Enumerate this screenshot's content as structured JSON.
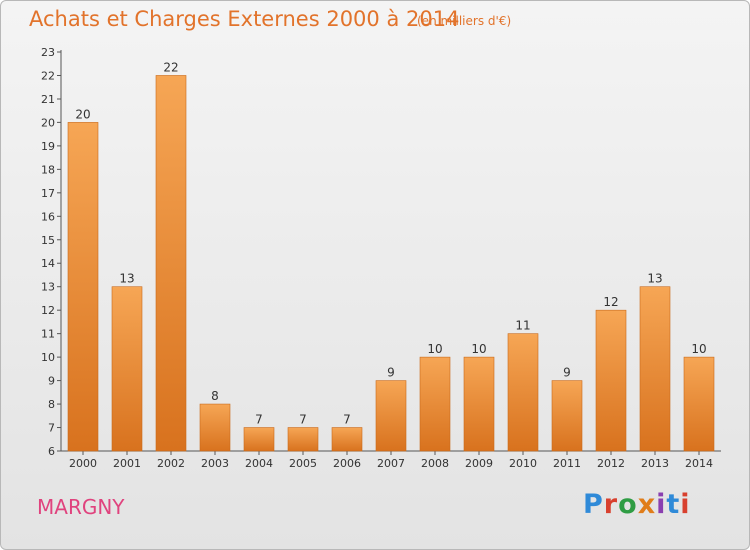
{
  "header": {
    "title": "Achats et Charges Externes 2000 à 2014",
    "subtitle": "(en milliers d'€)"
  },
  "footer": {
    "commune": "MARGNY",
    "logo_text": "Proxiti"
  },
  "colors": {
    "title": "#e2732b",
    "commune": "#e0437e",
    "bar_light": "#f6a655",
    "bar_dark": "#d8721e",
    "logo_letters": [
      "#2f8ad8",
      "#d8402e",
      "#2f9d44",
      "#e07d1a",
      "#8a3fb0",
      "#2f8ad8",
      "#d8402e"
    ]
  },
  "chart_data": {
    "type": "bar",
    "title": "Achats et Charges Externes 2000 à 2014",
    "subtitle": "(en milliers d'€)",
    "categories": [
      "2000",
      "2001",
      "2002",
      "2003",
      "2004",
      "2005",
      "2006",
      "2007",
      "2008",
      "2009",
      "2010",
      "2011",
      "2012",
      "2013",
      "2014"
    ],
    "values": [
      20,
      13,
      22,
      8,
      7,
      7,
      7,
      9,
      10,
      10,
      11,
      9,
      12,
      13,
      10
    ],
    "ylim": [
      6,
      23
    ],
    "yticks": [
      6,
      7,
      8,
      9,
      10,
      11,
      12,
      13,
      14,
      15,
      16,
      17,
      18,
      19,
      20,
      21,
      22,
      23
    ],
    "xlabel": "",
    "ylabel": "",
    "grid": false,
    "legend": "none"
  }
}
